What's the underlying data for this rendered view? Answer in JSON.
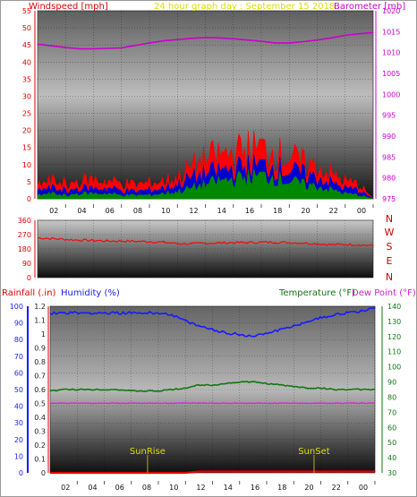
{
  "header": {
    "windspeed_label": "Windspeed [mph]",
    "title": "24 hour graph day : September 15 2018",
    "barometer_label": "Barometer [mb]"
  },
  "compass": [
    "N",
    "W",
    "S",
    "E",
    "N"
  ],
  "lower_header": {
    "rainfall_label": "Rainfall (.in)",
    "humidity_label": "Humidity (%)",
    "temperature_label": "Temperature (°F)",
    "dewpoint_label": "Dew Point (°F)"
  },
  "sun_labels": {
    "sunrise": "SunRise",
    "sunset": "SunSet"
  },
  "colors": {
    "wind_gust": "#ff0000",
    "wind_avg": "#0000cc",
    "wind_min": "#008800",
    "barometer": "#cc00cc",
    "direction": "#ee1111",
    "rainfall": "#dd0000",
    "humidity": "#1a1aff",
    "temperature": "#117711",
    "dewpoint": "#dd22dd",
    "sun": "#bbaa00"
  },
  "chart_data": [
    {
      "type": "area",
      "title": "24 hour graph day : September 15 2018",
      "x_ticks": [
        "02",
        "04",
        "06",
        "08",
        "10",
        "12",
        "14",
        "16",
        "18",
        "20",
        "22",
        "00"
      ],
      "y_left": {
        "label": "Windspeed [mph]",
        "range": [
          0,
          55
        ],
        "ticks": [
          0,
          5,
          10,
          15,
          20,
          25,
          30,
          35,
          40,
          45,
          50,
          55
        ]
      },
      "y_right": {
        "label": "Barometer [mb]",
        "range": [
          975,
          1020
        ],
        "ticks": [
          975,
          980,
          985,
          990,
          995,
          1000,
          1005,
          1010,
          1015,
          1020
        ]
      },
      "x_hours": [
        0,
        1,
        2,
        3,
        4,
        5,
        6,
        7,
        8,
        9,
        10,
        11,
        12,
        13,
        14,
        15,
        16,
        17,
        18,
        19,
        20,
        21,
        22,
        23,
        24
      ],
      "series": [
        {
          "name": "Windspeed",
          "role": "gust",
          "axis": "left",
          "values": [
            4,
            5,
            4.5,
            5,
            5.5,
            5,
            4.5,
            4,
            4.5,
            5,
            6,
            9,
            11,
            12.5,
            13,
            14,
            14.5,
            13,
            12,
            10,
            9,
            7,
            5,
            4,
            0
          ]
        },
        {
          "name": "Windspeed",
          "role": "average",
          "axis": "left",
          "values": [
            2.5,
            3,
            2.5,
            3,
            3,
            3,
            2.5,
            2,
            2.5,
            3,
            4,
            6,
            7,
            8,
            8.5,
            9,
            9.5,
            9,
            8,
            7,
            6,
            4.5,
            3,
            2.5,
            0
          ]
        },
        {
          "name": "Windspeed",
          "role": "minimum",
          "axis": "left",
          "values": [
            1,
            1.5,
            1,
            1.5,
            1.5,
            1.5,
            1,
            1,
            1,
            1.5,
            2,
            3,
            4,
            5,
            5.5,
            6,
            6.5,
            6,
            5,
            4,
            3.5,
            2.5,
            1.5,
            1,
            0
          ]
        },
        {
          "name": "Barometer",
          "axis": "right",
          "values": [
            1012,
            1011.6,
            1011.2,
            1010.9,
            1010.9,
            1011,
            1011.1,
            1011.7,
            1012.3,
            1012.8,
            1013.1,
            1013.4,
            1013.6,
            1013.5,
            1013.3,
            1013,
            1012.7,
            1012.3,
            1012.3,
            1012.6,
            1013,
            1013.5,
            1014.1,
            1014.5,
            1014.8
          ]
        }
      ]
    },
    {
      "type": "line",
      "y_left": {
        "range": [
          0,
          360
        ],
        "ticks": [
          0,
          90,
          180,
          270,
          360
        ]
      },
      "y_right_labels": [
        "N",
        "W",
        "S",
        "E",
        "N"
      ],
      "x_hours": [
        0,
        1,
        2,
        3,
        4,
        5,
        6,
        7,
        8,
        9,
        10,
        11,
        12,
        13,
        14,
        15,
        16,
        17,
        18,
        19,
        20,
        21,
        22,
        23,
        24
      ],
      "series": [
        {
          "name": "Wind Direction",
          "values": [
            250,
            245,
            240,
            235,
            233,
            230,
            230,
            228,
            226,
            222,
            214,
            212,
            216,
            218,
            220,
            220,
            222,
            222,
            220,
            217,
            213,
            207,
            208,
            206,
            200
          ]
        }
      ]
    },
    {
      "type": "line",
      "x_ticks": [
        "02",
        "04",
        "06",
        "08",
        "10",
        "12",
        "14",
        "16",
        "18",
        "20",
        "22",
        "00"
      ],
      "y_left_rain": {
        "label": "Rainfall (.in)",
        "range": [
          0,
          1.2
        ],
        "ticks": [
          0,
          0.1,
          0.2,
          0.3,
          0.4,
          0.5,
          0.6,
          0.7,
          0.8,
          0.9,
          1,
          1.1,
          1.2
        ]
      },
      "y_left_humidity": {
        "label": "Humidity (%)",
        "range": [
          0,
          100
        ],
        "ticks": [
          0,
          10,
          20,
          30,
          40,
          50,
          60,
          70,
          80,
          90,
          100
        ]
      },
      "y_right": {
        "label": "Temperature (°F)",
        "range": [
          30,
          140
        ],
        "ticks": [
          30,
          40,
          50,
          60,
          70,
          80,
          90,
          100,
          110,
          120,
          130,
          140
        ]
      },
      "x_hours": [
        0,
        1,
        2,
        3,
        4,
        5,
        6,
        7,
        8,
        9,
        10,
        11,
        12,
        13,
        14,
        15,
        16,
        17,
        18,
        19,
        20,
        21,
        22,
        23,
        24
      ],
      "series": [
        {
          "name": "Humidity",
          "axis": "humidity",
          "values": [
            96,
            96,
            96,
            96,
            96,
            96,
            96,
            96,
            96,
            95,
            91,
            88,
            86,
            84,
            83,
            82,
            84,
            86,
            88,
            91,
            93,
            95,
            96,
            97,
            99
          ]
        },
        {
          "name": "Temperature",
          "axis": "right",
          "values": [
            84,
            85,
            85,
            85,
            85,
            85,
            84,
            84,
            84,
            85,
            86,
            88,
            88,
            89,
            90,
            90,
            89,
            88,
            87,
            86,
            86,
            85,
            85,
            85,
            85
          ]
        },
        {
          "name": "Dew Point",
          "axis": "right",
          "values": [
            76,
            76,
            76,
            76,
            76,
            76,
            76,
            76,
            76,
            76,
            76,
            76,
            76,
            76,
            76,
            76,
            76,
            76,
            76,
            76,
            76,
            76,
            76,
            76,
            76
          ]
        },
        {
          "name": "Rainfall",
          "axis": "rain",
          "values": [
            0,
            0,
            0,
            0,
            0,
            0,
            0,
            0,
            0,
            0,
            0,
            0.01,
            0.01,
            0.01,
            0.01,
            0.01,
            0.01,
            0.01,
            0.01,
            0.01,
            0.01,
            0.01,
            0.01,
            0.01,
            0.01
          ]
        }
      ],
      "events": [
        {
          "label": "SunRise",
          "hour": 7.2
        },
        {
          "label": "SunSet",
          "hour": 19.5
        }
      ]
    }
  ]
}
